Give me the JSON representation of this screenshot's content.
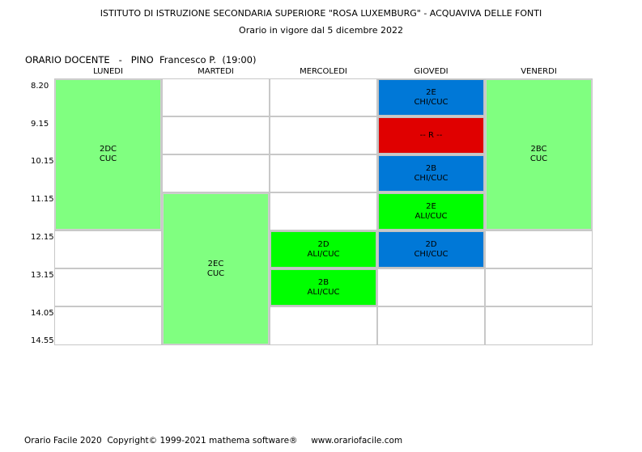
{
  "header": {
    "title": "ISTITUTO DI ISTRUZIONE SECONDARIA SUPERIORE \"ROSA LUXEMBURG\" - ACQUAVIVA DELLE FONTI",
    "subtitle": "Orario in vigore dal 5 dicembre 2022"
  },
  "teacher": {
    "label": "ORARIO DOCENTE   -   PINO  Francesco P.  (19:00)"
  },
  "days": [
    "LUNEDI",
    "MARTEDI",
    "MERCOLEDI",
    "GIOVEDI",
    "VENERDI"
  ],
  "times": [
    "8.20",
    "9.15",
    "10.15",
    "11.15",
    "12.15",
    "13.15",
    "14.05",
    "14.55"
  ],
  "colors": {
    "light_green": "#80ff80",
    "bright_green": "#00ff00",
    "blue": "#0078d7",
    "red": "#e00000"
  },
  "lessons": [
    {
      "day": 0,
      "slot": 0,
      "span": 4,
      "cls": "2DC",
      "subj": "CUC",
      "color": "light_green"
    },
    {
      "day": 1,
      "slot": 3,
      "span": 4,
      "cls": "2EC",
      "subj": "CUC",
      "color": "light_green"
    },
    {
      "day": 2,
      "slot": 4,
      "span": 1,
      "cls": "2D",
      "subj": "ALI/CUC",
      "color": "bright_green"
    },
    {
      "day": 2,
      "slot": 5,
      "span": 1,
      "cls": "2B",
      "subj": "ALI/CUC",
      "color": "bright_green"
    },
    {
      "day": 3,
      "slot": 0,
      "span": 1,
      "cls": "2E",
      "subj": "CHI/CUC",
      "color": "blue"
    },
    {
      "day": 3,
      "slot": 1,
      "span": 1,
      "cls": "-- R --",
      "subj": "",
      "color": "red"
    },
    {
      "day": 3,
      "slot": 2,
      "span": 1,
      "cls": "2B",
      "subj": "CHI/CUC",
      "color": "blue"
    },
    {
      "day": 3,
      "slot": 3,
      "span": 1,
      "cls": "2E",
      "subj": "ALI/CUC",
      "color": "bright_green"
    },
    {
      "day": 3,
      "slot": 4,
      "span": 1,
      "cls": "2D",
      "subj": "CHI/CUC",
      "color": "blue"
    },
    {
      "day": 4,
      "slot": 0,
      "span": 4,
      "cls": "2BC",
      "subj": "CUC",
      "color": "light_green"
    }
  ],
  "footer": {
    "text": "Orario Facile 2020  Copyright© 1999-2021 mathema software®     www.orariofacile.com"
  }
}
